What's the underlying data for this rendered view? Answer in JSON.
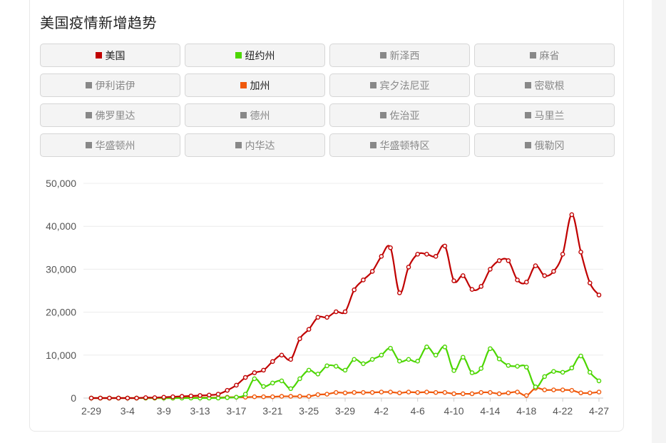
{
  "title": "美国疫情新增趋势",
  "legend": [
    {
      "label": "美国",
      "color": "#c00000",
      "active": true
    },
    {
      "label": "纽约州",
      "color": "#4cd600",
      "active": true
    },
    {
      "label": "新泽西",
      "color": "#888888",
      "active": false
    },
    {
      "label": "麻省",
      "color": "#888888",
      "active": false
    },
    {
      "label": "伊利诺伊",
      "color": "#888888",
      "active": false
    },
    {
      "label": "加州",
      "color": "#f0580a",
      "active": true
    },
    {
      "label": "宾夕法尼亚",
      "color": "#888888",
      "active": false
    },
    {
      "label": "密歇根",
      "color": "#888888",
      "active": false
    },
    {
      "label": "佛罗里达",
      "color": "#888888",
      "active": false
    },
    {
      "label": "德州",
      "color": "#888888",
      "active": false
    },
    {
      "label": "佐治亚",
      "color": "#888888",
      "active": false
    },
    {
      "label": "马里兰",
      "color": "#888888",
      "active": false
    },
    {
      "label": "华盛顿州",
      "color": "#888888",
      "active": false
    },
    {
      "label": "内华达",
      "color": "#888888",
      "active": false
    },
    {
      "label": "华盛顿特区",
      "color": "#888888",
      "active": false
    },
    {
      "label": "俄勒冈",
      "color": "#888888",
      "active": false
    }
  ],
  "chart_data": {
    "type": "line",
    "title": "美国疫情新增趋势",
    "x_tick_labels": [
      "2-29",
      "3-4",
      "3-9",
      "3-13",
      "3-17",
      "3-21",
      "3-25",
      "3-29",
      "4-2",
      "4-6",
      "4-10",
      "4-14",
      "4-18",
      "4-22",
      "4-27"
    ],
    "y_tick_labels": [
      "0",
      "10,000",
      "20,000",
      "30,000",
      "40,000",
      "50,000"
    ],
    "ylim": [
      0,
      50000
    ],
    "grid": true,
    "legend_position": "top",
    "smooth": true,
    "series": [
      {
        "name": "美国",
        "color": "#c00000",
        "values": [
          0,
          0,
          0,
          0,
          0,
          0,
          100,
          100,
          200,
          300,
          400,
          500,
          600,
          700,
          900,
          1800,
          3000,
          4800,
          5900,
          6500,
          8500,
          10000,
          9000,
          13800,
          16000,
          18800,
          18800,
          20100,
          20100,
          25200,
          27500,
          29500,
          33000,
          35000,
          24500,
          30500,
          33500,
          33500,
          33000,
          35400,
          27300,
          28500,
          25300,
          26000,
          30000,
          32000,
          32000,
          27500,
          27000,
          30800,
          28500,
          29500,
          33500,
          42700,
          34000,
          26800,
          24000
        ]
      },
      {
        "name": "纽约州",
        "color": "#4cd600",
        "values": [
          0,
          0,
          0,
          0,
          0,
          0,
          0,
          0,
          0,
          0,
          0,
          0,
          0,
          0,
          0,
          100,
          200,
          900,
          4500,
          2700,
          3500,
          4000,
          2200,
          4500,
          6500,
          5600,
          7500,
          7400,
          6500,
          9000,
          8000,
          9000,
          10000,
          11600,
          8600,
          9000,
          8600,
          11900,
          10000,
          11900,
          6400,
          9500,
          5900,
          6900,
          11500,
          9100,
          7600,
          7400,
          7200,
          2600,
          5000,
          6200,
          6000,
          7000,
          9800,
          6000,
          4000
        ]
      },
      {
        "name": "加州",
        "color": "#f0580a",
        "values": [
          0,
          0,
          0,
          0,
          0,
          0,
          0,
          0,
          0,
          0,
          100,
          100,
          100,
          100,
          100,
          200,
          200,
          200,
          300,
          300,
          300,
          400,
          400,
          400,
          400,
          800,
          900,
          1300,
          1200,
          1300,
          1300,
          1300,
          1400,
          1400,
          1200,
          1400,
          1300,
          1400,
          1300,
          1300,
          1000,
          1000,
          1000,
          1300,
          1300,
          1000,
          1200,
          1400,
          600,
          2300,
          1900,
          1900,
          1900,
          1800,
          1200,
          1200,
          1400
        ]
      }
    ]
  }
}
